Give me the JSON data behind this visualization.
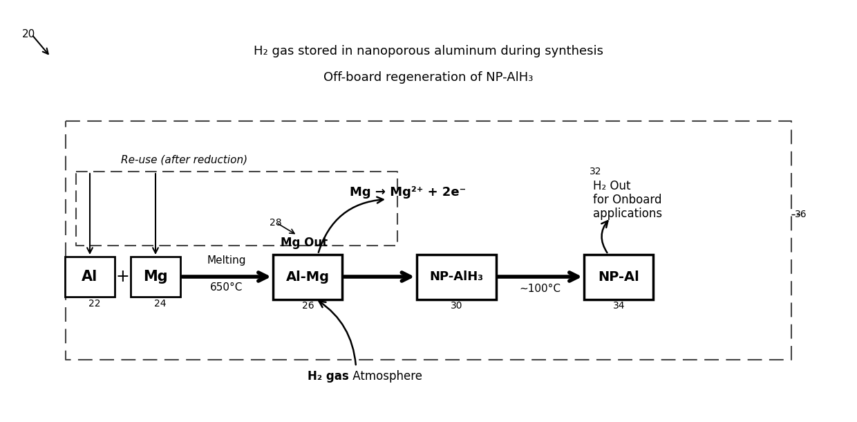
{
  "title1": "H₂ gas stored in nanoporous aluminum during synthesis",
  "title2": "Off-board regeneration of NP-AlH₃",
  "background_color": "#ffffff",
  "label_20": "20",
  "label_22": "22",
  "label_24": "24",
  "label_26": "26",
  "label_28": "28",
  "label_30": "30",
  "label_32": "32",
  "label_34": "34",
  "label_36": "36",
  "box_Al": "Al",
  "box_Mg": "Mg",
  "box_AlMg": "Al-Mg",
  "box_NPAlH3": "NP-AlH₃",
  "box_NPAl": "NP-Al",
  "text_melting_1": "Melting",
  "text_melting_2": "650°C",
  "text_MgOut": "Mg Out",
  "text_MgReaction": "Mg → Mg²⁺ + 2e⁻",
  "text_H2gas_bold": "H₂ gas",
  "text_H2gas_rest": " Atmosphere",
  "text_H2out_line1": "H₂ Out",
  "text_H2out_line2": "for Onboard",
  "text_H2out_line3": "applications",
  "text_temp": "~100°C",
  "text_reuse": "Re-use (after reduction)"
}
